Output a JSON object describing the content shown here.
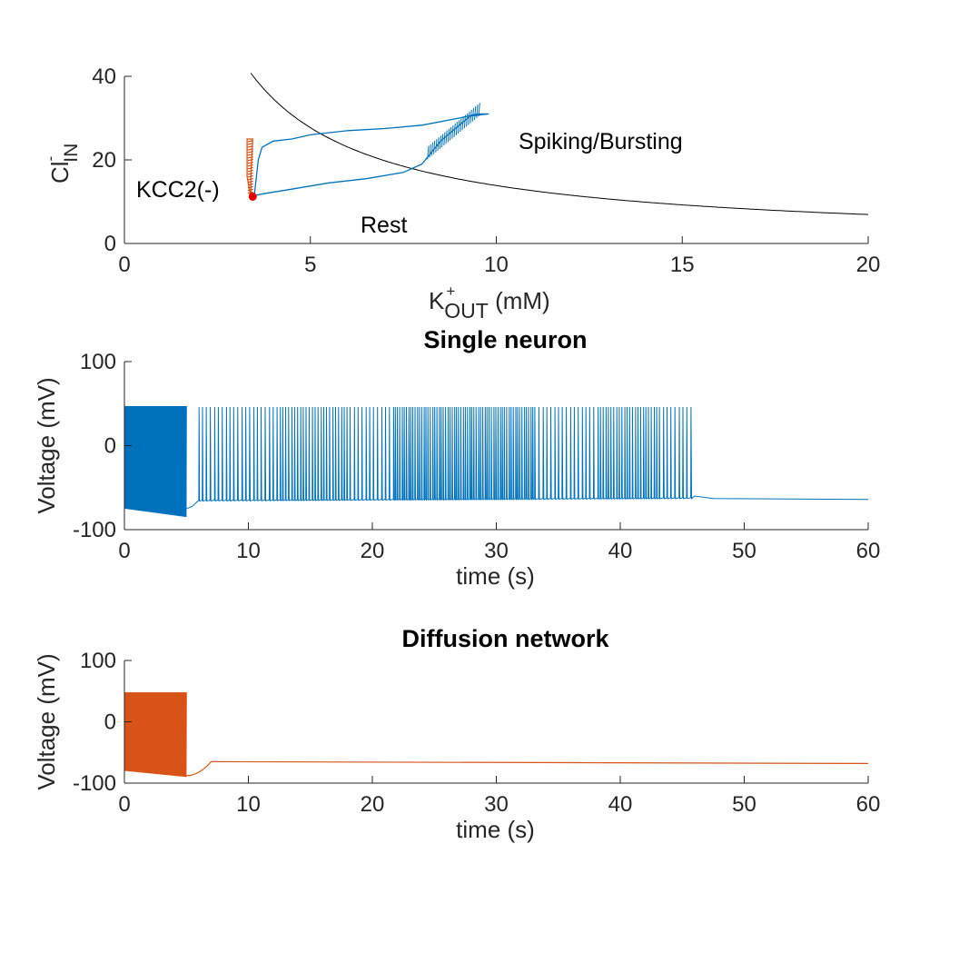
{
  "colors": {
    "blue": "#0072bd",
    "orange": "#d95319",
    "black": "#000000",
    "red": "#e00000",
    "axis": "#262626"
  },
  "chart_data": [
    {
      "type": "line",
      "title": "",
      "xlabel": {
        "base": "K",
        "sup": "+",
        "sub": "OUT",
        "rest": " (mM)"
      },
      "ylabel": {
        "base": "Cl",
        "sup": "-",
        "sub": "IN"
      },
      "xlim": [
        0,
        20
      ],
      "ylim": [
        0,
        40
      ],
      "xticks": [
        "0",
        "5",
        "10",
        "15",
        "20"
      ],
      "yticks": [
        "0",
        "20",
        "40"
      ],
      "grid": false,
      "annotations": [
        "Spiking/Bursting",
        "KCC2(-)",
        "Rest"
      ],
      "series": [
        {
          "role": "nullcline",
          "color": "black",
          "formula": "y = 138.6 / x",
          "x_range": [
            3.4,
            20
          ]
        },
        {
          "role": "trajectory",
          "color": "blue",
          "points": [
            [
              3.4,
              11.0
            ],
            [
              3.5,
              12.0
            ],
            [
              3.6,
              20.0
            ],
            [
              3.7,
              23.0
            ],
            [
              4.0,
              24.5
            ],
            [
              4.5,
              25.0
            ],
            [
              5.0,
              26.0
            ],
            [
              6.0,
              27.0
            ],
            [
              7.0,
              27.5
            ],
            [
              8.0,
              28.3
            ],
            [
              9.0,
              30.0
            ],
            [
              9.5,
              31.0
            ],
            [
              9.8,
              31.0
            ],
            [
              9.3,
              30.5
            ],
            [
              8.5,
              24.5
            ],
            [
              8.0,
              19.0
            ],
            [
              7.5,
              17.0
            ],
            [
              6.5,
              15.5
            ],
            [
              5.5,
              14.5
            ],
            [
              4.5,
              13.0
            ],
            [
              3.8,
              12.0
            ],
            [
              3.5,
              11.5
            ]
          ]
        },
        {
          "role": "trajectory",
          "color": "orange",
          "points": [
            [
              3.4,
              11.0
            ],
            [
              3.3,
              16.0
            ],
            [
              3.3,
              25.0
            ],
            [
              3.45,
              25.0
            ],
            [
              3.4,
              16.0
            ],
            [
              3.4,
              11.0
            ]
          ]
        },
        {
          "role": "point",
          "color": "red",
          "points": [
            [
              3.45,
              11.2
            ]
          ]
        }
      ]
    },
    {
      "type": "line",
      "title": "Single neuron",
      "xlabel": "time (s)",
      "ylabel": "Voltage (mV)",
      "xlim": [
        0,
        60
      ],
      "ylim": [
        -100,
        100
      ],
      "xticks": [
        "0",
        "10",
        "20",
        "30",
        "40",
        "50",
        "60"
      ],
      "yticks": [
        "-100",
        "0",
        "100"
      ],
      "grid": false,
      "series": [
        {
          "color": "blue",
          "dense_band": {
            "x": [
              0,
              5
            ],
            "y": [
              -75,
              47
            ]
          },
          "spike_train": {
            "x": [
              6,
              45.8
            ],
            "peak": 46,
            "trough_start": -65,
            "trough_end": -62
          },
          "rest": {
            "x": [
              46,
              60
            ],
            "y": -64
          }
        }
      ]
    },
    {
      "type": "line",
      "title": "Diffusion network",
      "xlabel": "time (s)",
      "ylabel": "Voltage (mV)",
      "xlim": [
        0,
        60
      ],
      "ylim": [
        -100,
        100
      ],
      "xticks": [
        "0",
        "10",
        "20",
        "30",
        "40",
        "50",
        "60"
      ],
      "yticks": [
        "-100",
        "0",
        "100"
      ],
      "grid": false,
      "series": [
        {
          "color": "orange",
          "dense_band": {
            "x": [
              0,
              5
            ],
            "y": [
              -80,
              48
            ]
          },
          "rest": {
            "x": [
              5,
              60
            ],
            "y": -67,
            "dip": -88
          }
        }
      ]
    }
  ]
}
